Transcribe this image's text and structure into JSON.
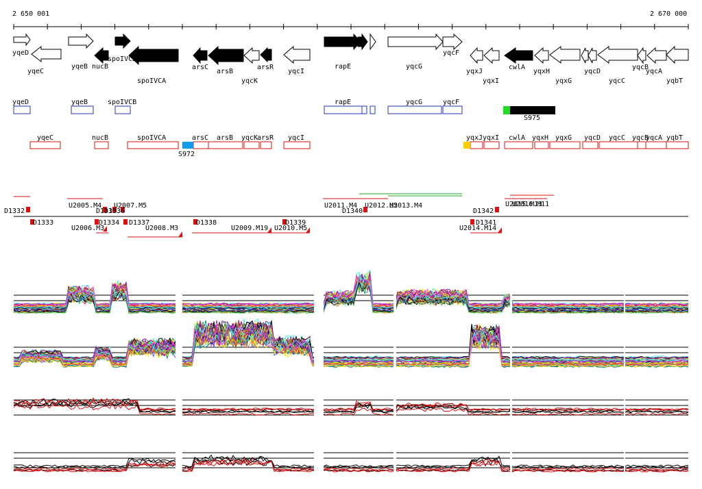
{
  "ruler": {
    "start_label": "2 650 001",
    "end_label": "2 670 000"
  },
  "colors": {
    "gene_fill_dark": "#000000",
    "gene_fill_light": "#ffffff",
    "forward_box": "#2233bb",
    "reverse_box": "#dd1111",
    "s975_green": "#22dd22",
    "s972_blue": "#1199ee",
    "yqxJ_yellow": "#ffcc00",
    "curve_black": "#000000",
    "curve_red": "#dd1111"
  },
  "genes_top": [
    {
      "label": "yqeD"
    },
    {
      "label": "yqeB"
    },
    {
      "label": "nucB"
    },
    {
      "label": "spoIVCB"
    },
    {
      "label": "spoIVCA"
    },
    {
      "label": "arsC"
    },
    {
      "label": "arsB"
    },
    {
      "label": "arsR"
    },
    {
      "label": "yqcK"
    },
    {
      "label": "yqcI"
    },
    {
      "label": "rapE"
    },
    {
      "label": "yqcG"
    },
    {
      "label": "yqcF"
    },
    {
      "label": "yqxJ"
    },
    {
      "label": "yqxI"
    },
    {
      "label": "cwlA"
    },
    {
      "label": "yqxH"
    },
    {
      "label": "yqxG"
    },
    {
      "label": "yqcD"
    },
    {
      "label": "yqcC"
    },
    {
      "label": "yqcB"
    },
    {
      "label": "yqcA"
    },
    {
      "label": "yqbT"
    },
    {
      "label": "yqeC"
    }
  ],
  "forward_boxes": [
    {
      "label": "yqeD"
    },
    {
      "label": "yqeB"
    },
    {
      "label": "spoIVCB"
    },
    {
      "label": "rapE"
    },
    {
      "label": "yqcG"
    },
    {
      "label": "yqcF"
    }
  ],
  "reverse_boxes": [
    {
      "label": "yqeC"
    },
    {
      "label": "nucB"
    },
    {
      "label": "spoIVCA"
    },
    {
      "label": "arsC"
    },
    {
      "label": "arsB"
    },
    {
      "label": "yqcK"
    },
    {
      "label": "arsR"
    },
    {
      "label": "yqcI"
    },
    {
      "label": "yqxJ"
    },
    {
      "label": "yqxI"
    },
    {
      "label": "cwlA"
    },
    {
      "label": "yqxH"
    },
    {
      "label": "yqxG"
    },
    {
      "label": "yqcD"
    },
    {
      "label": "yqcC"
    },
    {
      "label": "yqcB"
    },
    {
      "label": "yqcA"
    },
    {
      "label": "yqbT"
    }
  ],
  "special_features": {
    "s975": "S975",
    "s972": "S972"
  },
  "transcription_units": [
    {
      "label": "D1332"
    },
    {
      "label": "D1333"
    },
    {
      "label": "U2005.M4"
    },
    {
      "label": "U2006.M3"
    },
    {
      "label": "D1334"
    },
    {
      "label": "D1335"
    },
    {
      "label": "D1336"
    },
    {
      "label": "U2007.M5"
    },
    {
      "label": "D1337"
    },
    {
      "label": "U2008.M3"
    },
    {
      "label": "D1338"
    },
    {
      "label": "U2009.M19"
    },
    {
      "label": "D1339"
    },
    {
      "label": "U2010.M5"
    },
    {
      "label": "U2011.M4"
    },
    {
      "label": "D1340"
    },
    {
      "label": "U2012.M5"
    },
    {
      "label": "U2013.M4"
    },
    {
      "label": "D1342"
    },
    {
      "label": "D1341"
    },
    {
      "label": "U2014.M14"
    },
    {
      "label": "U2015.M13"
    },
    {
      "label": "U2016.M11"
    }
  ]
}
